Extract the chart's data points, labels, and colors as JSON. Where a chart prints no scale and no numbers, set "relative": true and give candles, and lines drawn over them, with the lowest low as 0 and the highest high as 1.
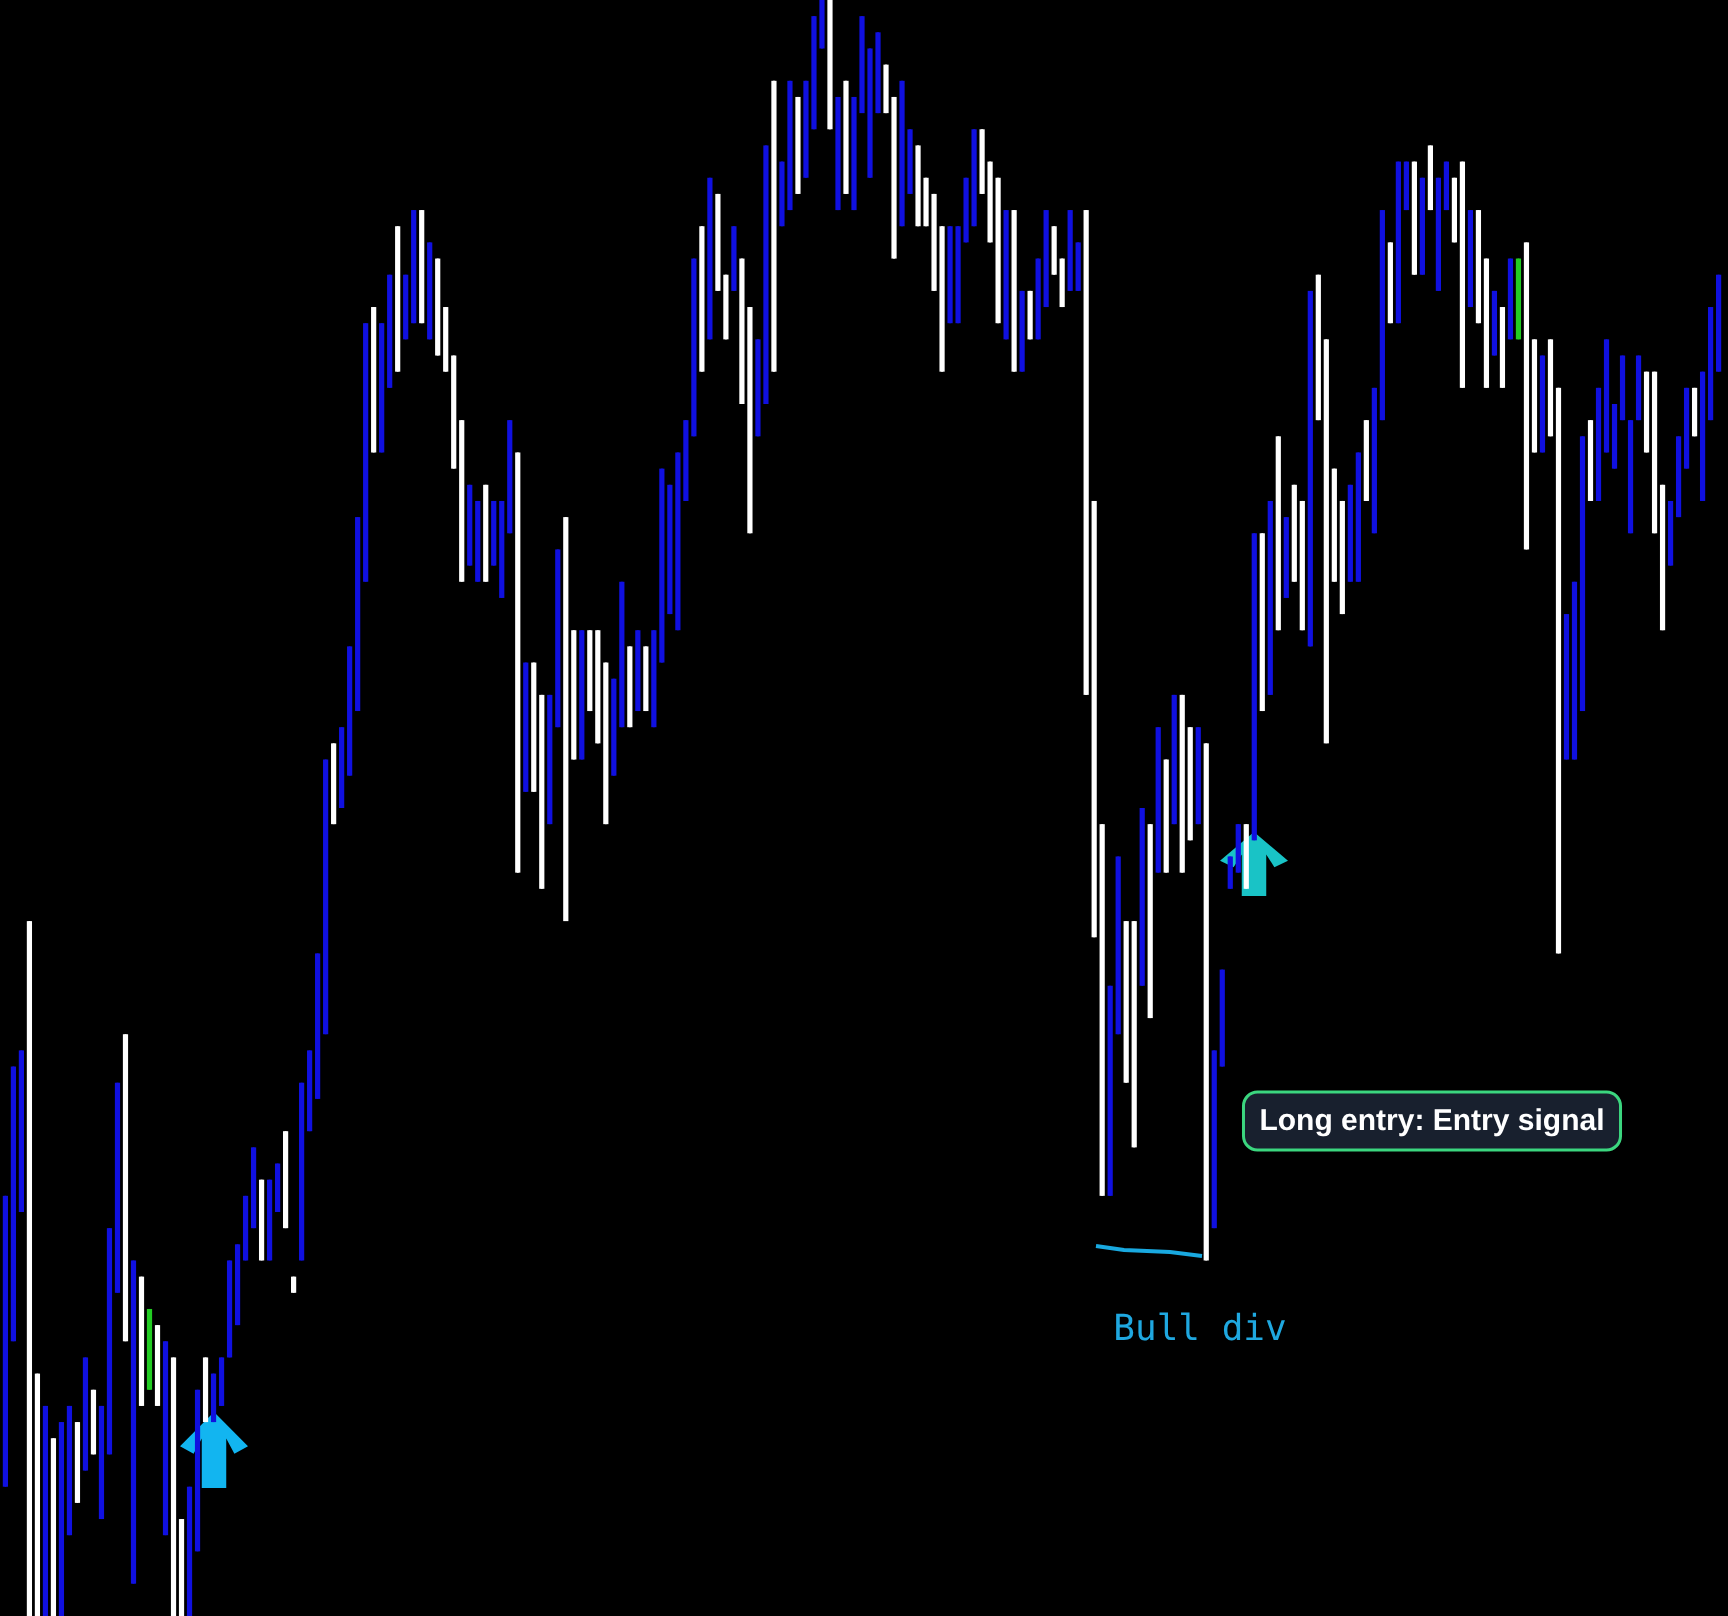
{
  "chart_data": {
    "type": "candlestick",
    "relative": true,
    "categories": [
      null,
      null,
      null,
      null,
      null,
      null,
      null,
      null,
      null,
      null,
      null,
      null,
      null,
      null,
      null,
      null,
      null,
      null,
      null,
      null,
      null,
      null,
      null,
      null,
      null,
      null,
      null,
      null,
      null,
      null,
      null,
      null,
      null,
      null,
      null,
      null,
      null,
      null,
      null,
      null,
      null,
      null,
      null,
      null,
      null,
      null,
      null,
      null,
      null,
      null,
      null,
      null,
      null,
      null,
      null,
      null,
      null,
      null,
      null,
      null,
      null,
      null,
      null,
      null,
      null,
      null,
      null,
      null,
      null,
      null,
      null,
      null,
      null,
      null,
      null,
      null,
      null,
      null,
      null,
      null,
      null,
      null,
      null,
      null,
      null,
      null,
      null,
      null,
      null,
      null,
      null,
      null,
      null,
      null,
      null,
      null,
      null,
      null,
      null,
      null,
      null,
      null,
      null,
      null,
      null,
      null,
      null,
      null,
      null,
      null,
      null,
      null,
      null,
      null,
      null,
      null,
      null,
      null,
      null,
      null,
      null,
      null,
      null,
      null,
      null,
      null,
      null,
      null,
      null,
      null,
      null,
      null,
      null,
      null,
      null,
      null,
      null,
      null,
      null,
      null,
      null,
      null,
      null,
      null,
      null,
      null,
      null,
      null,
      null,
      null,
      null,
      null,
      null,
      null,
      null,
      null,
      null,
      null,
      null,
      null,
      null,
      null,
      null,
      null,
      null,
      null,
      null,
      null,
      null,
      null,
      null,
      null,
      null,
      null,
      null,
      null,
      null,
      null,
      null,
      null,
      null,
      null,
      null,
      null,
      null,
      null,
      null,
      null,
      null,
      null,
      null,
      null,
      null,
      null,
      null,
      null,
      null,
      null,
      null,
      null,
      null,
      null,
      null,
      null,
      null,
      null,
      null,
      null,
      null,
      null,
      null,
      null,
      null,
      null,
      null
    ],
    "ohlc": [
      [
        0.08,
        0.26,
        0.08,
        0.26
      ],
      [
        0.17,
        0.34,
        0.17,
        0.34
      ],
      [
        0.25,
        0.35,
        0.25,
        0.35
      ],
      [
        0.43,
        0.43,
        0,
        0
      ],
      [
        0.15,
        0.15,
        0,
        0
      ],
      [
        0,
        0.13,
        0,
        0.13
      ],
      [
        0.11,
        0.11,
        0,
        0
      ],
      [
        0,
        0.12,
        0,
        0.12
      ],
      [
        0.05,
        0.13,
        0.05,
        0.13
      ],
      [
        0.12,
        0.12,
        0.07,
        0.07
      ],
      [
        0.09,
        0.16,
        0.09,
        0.16
      ],
      [
        0.14,
        0.14,
        0.1,
        0.1
      ],
      [
        0.06,
        0.13,
        0.06,
        0.13
      ],
      [
        0.1,
        0.24,
        0.1,
        0.24
      ],
      [
        0.2,
        0.33,
        0.2,
        0.33
      ],
      [
        0.36,
        0.36,
        0.17,
        0.17
      ],
      [
        0.02,
        0.22,
        0.02,
        0.22
      ],
      [
        0.21,
        0.21,
        0.13,
        0.13
      ],
      [
        0.14,
        0.19,
        0.14,
        0.19
      ],
      [
        0.18,
        0.18,
        0.13,
        0.13
      ],
      [
        0.05,
        0.17,
        0.05,
        0.17
      ],
      [
        0.16,
        0.16,
        0,
        0
      ],
      [
        0.06,
        0.06,
        0,
        0
      ],
      [
        0,
        0.08,
        0,
        0.08
      ],
      [
        0.04,
        0.14,
        0.04,
        0.14
      ],
      [
        0.16,
        0.16,
        0.12,
        0.12
      ],
      [
        0.12,
        0.15,
        0.12,
        0.15
      ],
      [
        0.13,
        0.16,
        0.13,
        0.16
      ],
      [
        0.16,
        0.22,
        0.16,
        0.22
      ],
      [
        0.18,
        0.23,
        0.18,
        0.23
      ],
      [
        0.22,
        0.26,
        0.22,
        0.26
      ],
      [
        0.24,
        0.29,
        0.24,
        0.29
      ],
      [
        0.27,
        0.27,
        0.22,
        0.22
      ],
      [
        0.22,
        0.27,
        0.22,
        0.27
      ],
      [
        0.25,
        0.28,
        0.25,
        0.28
      ],
      [
        0.3,
        0.3,
        0.24,
        0.24
      ],
      [
        0.21,
        0.21,
        0.2,
        0.2
      ],
      [
        0.22,
        0.33,
        0.22,
        0.33
      ],
      [
        0.3,
        0.35,
        0.3,
        0.35
      ],
      [
        0.32,
        0.41,
        0.32,
        0.41
      ],
      [
        0.36,
        0.53,
        0.36,
        0.53
      ],
      [
        0.54,
        0.54,
        0.49,
        0.49
      ],
      [
        0.5,
        0.55,
        0.5,
        0.55
      ],
      [
        0.52,
        0.6,
        0.52,
        0.6
      ],
      [
        0.56,
        0.68,
        0.56,
        0.68
      ],
      [
        0.64,
        0.8,
        0.64,
        0.8
      ],
      [
        0.81,
        0.81,
        0.72,
        0.72
      ],
      [
        0.72,
        0.8,
        0.72,
        0.8
      ],
      [
        0.76,
        0.83,
        0.76,
        0.83
      ],
      [
        0.86,
        0.86,
        0.77,
        0.77
      ],
      [
        0.79,
        0.83,
        0.79,
        0.83
      ],
      [
        0.8,
        0.87,
        0.8,
        0.87
      ],
      [
        0.87,
        0.87,
        0.8,
        0.8
      ],
      [
        0.79,
        0.85,
        0.79,
        0.85
      ],
      [
        0.84,
        0.84,
        0.78,
        0.78
      ],
      [
        0.81,
        0.81,
        0.77,
        0.77
      ],
      [
        0.78,
        0.78,
        0.71,
        0.71
      ],
      [
        0.74,
        0.74,
        0.64,
        0.64
      ],
      [
        0.65,
        0.7,
        0.65,
        0.7
      ],
      [
        0.64,
        0.69,
        0.64,
        0.69
      ],
      [
        0.7,
        0.7,
        0.64,
        0.64
      ],
      [
        0.65,
        0.69,
        0.65,
        0.69
      ],
      [
        0.63,
        0.69,
        0.63,
        0.69
      ],
      [
        0.67,
        0.74,
        0.67,
        0.74
      ],
      [
        0.72,
        0.72,
        0.46,
        0.46
      ],
      [
        0.51,
        0.59,
        0.51,
        0.59
      ],
      [
        0.59,
        0.59,
        0.51,
        0.51
      ],
      [
        0.57,
        0.57,
        0.45,
        0.45
      ],
      [
        0.49,
        0.57,
        0.49,
        0.57
      ],
      [
        0.55,
        0.66,
        0.55,
        0.66
      ],
      [
        0.68,
        0.68,
        0.43,
        0.43
      ],
      [
        0.61,
        0.61,
        0.53,
        0.53
      ],
      [
        0.53,
        0.61,
        0.53,
        0.61
      ],
      [
        0.61,
        0.61,
        0.56,
        0.56
      ],
      [
        0.61,
        0.61,
        0.54,
        0.54
      ],
      [
        0.59,
        0.59,
        0.49,
        0.49
      ],
      [
        0.52,
        0.58,
        0.52,
        0.58
      ],
      [
        0.55,
        0.64,
        0.55,
        0.64
      ],
      [
        0.6,
        0.6,
        0.55,
        0.55
      ],
      [
        0.56,
        0.61,
        0.56,
        0.61
      ],
      [
        0.6,
        0.6,
        0.56,
        0.56
      ],
      [
        0.55,
        0.61,
        0.55,
        0.61
      ],
      [
        0.59,
        0.71,
        0.59,
        0.71
      ],
      [
        0.62,
        0.7,
        0.62,
        0.7
      ],
      [
        0.61,
        0.72,
        0.61,
        0.72
      ],
      [
        0.69,
        0.74,
        0.69,
        0.74
      ],
      [
        0.73,
        0.84,
        0.73,
        0.84
      ],
      [
        0.86,
        0.86,
        0.77,
        0.77
      ],
      [
        0.79,
        0.89,
        0.79,
        0.89
      ],
      [
        0.88,
        0.88,
        0.82,
        0.82
      ],
      [
        0.83,
        0.83,
        0.79,
        0.79
      ],
      [
        0.82,
        0.86,
        0.82,
        0.86
      ],
      [
        0.84,
        0.84,
        0.75,
        0.75
      ],
      [
        0.81,
        0.81,
        0.67,
        0.67
      ],
      [
        0.73,
        0.79,
        0.73,
        0.79
      ],
      [
        0.75,
        0.91,
        0.75,
        0.91
      ],
      [
        0.95,
        0.95,
        0.77,
        0.77
      ],
      [
        0.86,
        0.9,
        0.86,
        0.9
      ],
      [
        0.87,
        0.95,
        0.87,
        0.95
      ],
      [
        0.94,
        0.94,
        0.88,
        0.88
      ],
      [
        0.89,
        0.95,
        0.89,
        0.95
      ],
      [
        0.92,
        0.99,
        0.92,
        0.99
      ],
      [
        0.97,
        1,
        0.97,
        1
      ],
      [
        1,
        1,
        0.92,
        0.92
      ],
      [
        0.87,
        0.94,
        0.87,
        0.94
      ],
      [
        0.95,
        0.95,
        0.88,
        0.88
      ],
      [
        0.87,
        0.94,
        0.87,
        0.94
      ],
      [
        0.93,
        0.99,
        0.93,
        0.99
      ],
      [
        0.89,
        0.97,
        0.89,
        0.97
      ],
      [
        0.93,
        0.98,
        0.93,
        0.98
      ],
      [
        0.96,
        0.96,
        0.93,
        0.93
      ],
      [
        0.94,
        0.94,
        0.84,
        0.84
      ],
      [
        0.86,
        0.95,
        0.86,
        0.95
      ],
      [
        0.88,
        0.92,
        0.88,
        0.92
      ],
      [
        0.91,
        0.91,
        0.86,
        0.86
      ],
      [
        0.89,
        0.89,
        0.86,
        0.86
      ],
      [
        0.88,
        0.88,
        0.82,
        0.82
      ],
      [
        0.86,
        0.86,
        0.77,
        0.77
      ],
      [
        0.8,
        0.86,
        0.8,
        0.86
      ],
      [
        0.8,
        0.86,
        0.8,
        0.86
      ],
      [
        0.85,
        0.89,
        0.85,
        0.89
      ],
      [
        0.86,
        0.92,
        0.86,
        0.92
      ],
      [
        0.92,
        0.92,
        0.88,
        0.88
      ],
      [
        0.9,
        0.9,
        0.85,
        0.85
      ],
      [
        0.89,
        0.89,
        0.8,
        0.8
      ],
      [
        0.79,
        0.87,
        0.79,
        0.87
      ],
      [
        0.87,
        0.87,
        0.77,
        0.77
      ],
      [
        0.77,
        0.82,
        0.77,
        0.82
      ],
      [
        0.82,
        0.82,
        0.79,
        0.79
      ],
      [
        0.79,
        0.84,
        0.79,
        0.84
      ],
      [
        0.81,
        0.87,
        0.81,
        0.87
      ],
      [
        0.86,
        0.86,
        0.83,
        0.83
      ],
      [
        0.84,
        0.84,
        0.81,
        0.81
      ],
      [
        0.82,
        0.87,
        0.82,
        0.87
      ],
      [
        0.82,
        0.85,
        0.82,
        0.85
      ],
      [
        0.87,
        0.87,
        0.57,
        0.57
      ],
      [
        0.69,
        0.69,
        0.42,
        0.42
      ],
      [
        0.49,
        0.49,
        0.26,
        0.26
      ],
      [
        0.26,
        0.39,
        0.26,
        0.39
      ],
      [
        0.36,
        0.47,
        0.36,
        0.47
      ],
      [
        0.43,
        0.43,
        0.33,
        0.33
      ],
      [
        0.43,
        0.43,
        0.29,
        0.29
      ],
      [
        0.39,
        0.5,
        0.39,
        0.5
      ],
      [
        0.49,
        0.49,
        0.37,
        0.37
      ],
      [
        0.46,
        0.55,
        0.46,
        0.55
      ],
      [
        0.53,
        0.53,
        0.46,
        0.46
      ],
      [
        0.49,
        0.57,
        0.49,
        0.57
      ],
      [
        0.57,
        0.57,
        0.46,
        0.46
      ],
      [
        0.55,
        0.55,
        0.48,
        0.48
      ],
      [
        0.49,
        0.55,
        0.49,
        0.55
      ],
      [
        0.54,
        0.54,
        0.22,
        0.22
      ],
      [
        0.24,
        0.35,
        0.24,
        0.35
      ],
      [
        0.34,
        0.4,
        0.34,
        0.4
      ],
      [
        0.45,
        0.47,
        0.45,
        0.47
      ],
      [
        0.46,
        0.49,
        0.46,
        0.49
      ],
      [
        0.49,
        0.49,
        0.45,
        0.45
      ],
      [
        0.48,
        0.67,
        0.48,
        0.67
      ],
      [
        0.67,
        0.67,
        0.56,
        0.56
      ],
      [
        0.57,
        0.69,
        0.57,
        0.69
      ],
      [
        0.73,
        0.73,
        0.61,
        0.61
      ],
      [
        0.63,
        0.68,
        0.63,
        0.68
      ],
      [
        0.7,
        0.7,
        0.64,
        0.64
      ],
      [
        0.69,
        0.69,
        0.61,
        0.61
      ],
      [
        0.6,
        0.82,
        0.6,
        0.82
      ],
      [
        0.83,
        0.83,
        0.74,
        0.74
      ],
      [
        0.79,
        0.79,
        0.54,
        0.54
      ],
      [
        0.71,
        0.71,
        0.64,
        0.64
      ],
      [
        0.69,
        0.69,
        0.62,
        0.62
      ],
      [
        0.64,
        0.7,
        0.64,
        0.7
      ],
      [
        0.64,
        0.72,
        0.64,
        0.72
      ],
      [
        0.74,
        0.74,
        0.69,
        0.69
      ],
      [
        0.67,
        0.76,
        0.67,
        0.76
      ],
      [
        0.74,
        0.87,
        0.74,
        0.87
      ],
      [
        0.85,
        0.85,
        0.8,
        0.8
      ],
      [
        0.8,
        0.9,
        0.8,
        0.9
      ],
      [
        0.87,
        0.9,
        0.87,
        0.9
      ],
      [
        0.9,
        0.9,
        0.83,
        0.83
      ],
      [
        0.83,
        0.89,
        0.83,
        0.89
      ],
      [
        0.91,
        0.91,
        0.87,
        0.87
      ],
      [
        0.82,
        0.89,
        0.82,
        0.89
      ],
      [
        0.87,
        0.9,
        0.87,
        0.9
      ],
      [
        0.89,
        0.89,
        0.85,
        0.85
      ],
      [
        0.9,
        0.9,
        0.76,
        0.76
      ],
      [
        0.81,
        0.87,
        0.81,
        0.87
      ],
      [
        0.87,
        0.87,
        0.8,
        0.8
      ],
      [
        0.84,
        0.84,
        0.76,
        0.76
      ],
      [
        0.78,
        0.82,
        0.78,
        0.82
      ],
      [
        0.81,
        0.81,
        0.76,
        0.76
      ],
      [
        0.79,
        0.84,
        0.79,
        0.84
      ],
      [
        0.79,
        0.84,
        0.79,
        0.84
      ],
      [
        0.85,
        0.85,
        0.66,
        0.66
      ],
      [
        0.79,
        0.79,
        0.72,
        0.72
      ],
      [
        0.72,
        0.78,
        0.72,
        0.78
      ],
      [
        0.79,
        0.79,
        0.73,
        0.73
      ],
      [
        0.76,
        0.76,
        0.41,
        0.41
      ],
      [
        0.53,
        0.62,
        0.53,
        0.62
      ],
      [
        0.53,
        0.64,
        0.53,
        0.64
      ],
      [
        0.56,
        0.73,
        0.56,
        0.73
      ],
      [
        0.74,
        0.74,
        0.69,
        0.69
      ],
      [
        0.69,
        0.76,
        0.69,
        0.76
      ],
      [
        0.72,
        0.79,
        0.72,
        0.79
      ],
      [
        0.71,
        0.75,
        0.71,
        0.75
      ],
      [
        0.74,
        0.78,
        0.74,
        0.78
      ],
      [
        0.67,
        0.74,
        0.67,
        0.74
      ],
      [
        0.74,
        0.78,
        0.74,
        0.78
      ],
      [
        0.77,
        0.77,
        0.72,
        0.72
      ],
      [
        0.77,
        0.77,
        0.67,
        0.67
      ],
      [
        0.7,
        0.7,
        0.61,
        0.61
      ],
      [
        0.65,
        0.69,
        0.65,
        0.69
      ],
      [
        0.68,
        0.73,
        0.68,
        0.73
      ],
      [
        0.71,
        0.76,
        0.71,
        0.76
      ],
      [
        0.76,
        0.76,
        0.73,
        0.73
      ],
      [
        0.69,
        0.77,
        0.69,
        0.77
      ],
      [
        0.74,
        0.81,
        0.74,
        0.81
      ],
      [
        0.77,
        0.83,
        0.77,
        0.83
      ]
    ],
    "colors": [
      "#1010e0",
      "#1010e0",
      "#1010e0",
      "#ffffff",
      "#ffffff",
      "#1010e0",
      "#ffffff",
      "#1010e0",
      "#1010e0",
      "#ffffff",
      "#1010e0",
      "#ffffff",
      "#1010e0",
      "#1010e0",
      "#1010e0",
      "#ffffff",
      "#1010e0",
      "#ffffff",
      "#22cc22",
      "#ffffff",
      "#1010e0",
      "#ffffff",
      "#ffffff",
      "#1010e0",
      "#1010e0",
      "#ffffff",
      "#1010e0",
      "#1010e0",
      "#1010e0",
      "#1010e0",
      "#1010e0",
      "#1010e0",
      "#ffffff",
      "#1010e0",
      "#1010e0",
      "#ffffff",
      "#ffffff",
      "#1010e0",
      "#1010e0",
      "#1010e0",
      "#1010e0",
      "#ffffff",
      "#1010e0",
      "#1010e0",
      "#1010e0",
      "#1010e0",
      "#ffffff",
      "#1010e0",
      "#1010e0",
      "#ffffff",
      "#1010e0",
      "#1010e0",
      "#ffffff",
      "#1010e0",
      "#ffffff",
      "#ffffff",
      "#ffffff",
      "#ffffff",
      "#1010e0",
      "#1010e0",
      "#ffffff",
      "#1010e0",
      "#1010e0",
      "#1010e0",
      "#ffffff",
      "#1010e0",
      "#ffffff",
      "#ffffff",
      "#1010e0",
      "#1010e0",
      "#ffffff",
      "#ffffff",
      "#1010e0",
      "#ffffff",
      "#ffffff",
      "#ffffff",
      "#1010e0",
      "#1010e0",
      "#ffffff",
      "#1010e0",
      "#ffffff",
      "#1010e0",
      "#1010e0",
      "#1010e0",
      "#1010e0",
      "#1010e0",
      "#1010e0",
      "#ffffff",
      "#1010e0",
      "#ffffff",
      "#ffffff",
      "#1010e0",
      "#ffffff",
      "#ffffff",
      "#1010e0",
      "#1010e0",
      "#ffffff",
      "#1010e0",
      "#1010e0",
      "#ffffff",
      "#1010e0",
      "#1010e0",
      "#1010e0",
      "#ffffff",
      "#1010e0",
      "#ffffff",
      "#1010e0",
      "#1010e0",
      "#1010e0",
      "#1010e0",
      "#ffffff",
      "#ffffff",
      "#1010e0",
      "#1010e0",
      "#ffffff",
      "#ffffff",
      "#ffffff",
      "#ffffff",
      "#1010e0",
      "#1010e0",
      "#1010e0",
      "#1010e0",
      "#ffffff",
      "#ffffff",
      "#ffffff",
      "#1010e0",
      "#ffffff",
      "#1010e0",
      "#ffffff",
      "#1010e0",
      "#1010e0",
      "#ffffff",
      "#ffffff",
      "#1010e0",
      "#1010e0",
      "#ffffff",
      "#ffffff",
      "#ffffff",
      "#1010e0",
      "#1010e0",
      "#ffffff",
      "#ffffff",
      "#1010e0",
      "#ffffff",
      "#1010e0",
      "#ffffff",
      "#1010e0",
      "#ffffff",
      "#ffffff",
      "#1010e0",
      "#ffffff",
      "#1010e0",
      "#1010e0",
      "#1010e0",
      "#1010e0",
      "#ffffff",
      "#1010e0",
      "#ffffff",
      "#1010e0",
      "#ffffff",
      "#1010e0",
      "#ffffff",
      "#ffffff",
      "#1010e0",
      "#ffffff",
      "#ffffff",
      "#ffffff",
      "#ffffff",
      "#1010e0",
      "#1010e0",
      "#ffffff",
      "#1010e0",
      "#1010e0",
      "#ffffff",
      "#1010e0",
      "#1010e0",
      "#ffffff",
      "#1010e0",
      "#ffffff",
      "#1010e0",
      "#1010e0",
      "#ffffff",
      "#ffffff",
      "#1010e0",
      "#ffffff",
      "#ffffff",
      "#1010e0",
      "#ffffff",
      "#1010e0",
      "#22cc22",
      "#ffffff",
      "#ffffff",
      "#1010e0",
      "#ffffff",
      "#ffffff",
      "#1010e0",
      "#1010e0",
      "#1010e0",
      "#ffffff",
      "#1010e0",
      "#1010e0",
      "#1010e0",
      "#1010e0",
      "#1010e0",
      "#1010e0",
      "#ffffff",
      "#ffffff",
      "#ffffff",
      "#1010e0",
      "#1010e0",
      "#1010e0",
      "#ffffff",
      "#1010e0",
      "#1010e0",
      "#1010e0"
    ],
    "annotations": [
      "Long entry: Entry signal",
      "Bull div"
    ]
  }
}
